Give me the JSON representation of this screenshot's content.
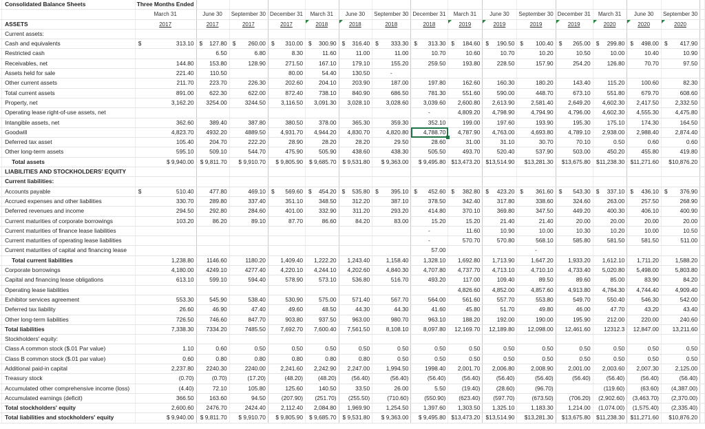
{
  "sheet": {
    "title": "Consolidated Balance Sheets",
    "period_header": "Three Months Ended",
    "selected_cell": {
      "row": "Goodwill",
      "column": "December 31 2018",
      "value": "4,788.70"
    },
    "accent_color": "#217346",
    "comment_marker_color": "#1e8a3a",
    "columns": [
      {
        "date": "March 31",
        "year": "2017",
        "comment": false
      },
      {
        "date": "June 30",
        "year": "2017",
        "comment": false
      },
      {
        "date": "September 30",
        "year": "2017",
        "comment": false
      },
      {
        "date": "December 31",
        "year": "2017",
        "comment": false
      },
      {
        "date": "March 31",
        "year": "2018",
        "comment": true
      },
      {
        "date": "June 30",
        "year": "2018",
        "comment": true
      },
      {
        "date": "September 30",
        "year": "2018",
        "comment": false
      },
      {
        "date": "December 31",
        "year": "2018",
        "comment": false
      },
      {
        "date": "March 31",
        "year": "2019",
        "comment": true
      },
      {
        "date": "June 30",
        "year": "2019",
        "comment": true
      },
      {
        "date": "September 30",
        "year": "2019",
        "comment": false
      },
      {
        "date": "December 31",
        "year": "2019",
        "comment": true
      },
      {
        "date": "March 31",
        "year": "2020",
        "comment": true
      },
      {
        "date": "June 30",
        "year": "2020",
        "comment": true
      },
      {
        "date": "September 30",
        "year": "2020",
        "comment": true
      }
    ],
    "rows": [
      {
        "label": "ASSETS",
        "style": "header-in-years",
        "values": []
      },
      {
        "label": "Current assets:",
        "values": []
      },
      {
        "label": "Cash and equivalents",
        "dollar": [
          1,
          1,
          1,
          1,
          1,
          1,
          1,
          1,
          1,
          1,
          1,
          1,
          1,
          1,
          1
        ],
        "values": [
          "313.10",
          "127.80",
          "260.00",
          "310.00",
          "300.90",
          "316.40",
          "333.30",
          "313.30",
          "184.60",
          "190.50",
          "100.40",
          "265.00",
          "299.80",
          "498.00",
          "417.90"
        ]
      },
      {
        "label": "Restricted cash",
        "values": [
          "",
          "6.50",
          "6.80",
          "8.30",
          "11.60",
          "11.00",
          "11.00",
          "10.70",
          "10.60",
          "10.70",
          "10.20",
          "10.50",
          "10.00",
          "10.40",
          "10.90"
        ]
      },
      {
        "label": "Receivables, net",
        "values": [
          "144.80",
          "153.80",
          "128.90",
          "271.50",
          "167.10",
          "179.10",
          "155.20",
          "259.50",
          "193.80",
          "228.50",
          "157.90",
          "254.20",
          "126.80",
          "70.70",
          "97.50"
        ]
      },
      {
        "label": "Assets held for sale",
        "values": [
          "221.40",
          "110.50",
          "",
          "80.00",
          "54.40",
          "130.50",
          "-",
          "",
          "",
          "",
          "",
          "",
          "",
          "",
          ""
        ]
      },
      {
        "label": "Other current assets",
        "values": [
          "211.70",
          "223.70",
          "226.30",
          "202.60",
          "204.10",
          "203.90",
          "187.00",
          "197.80",
          "162.60",
          "160.30",
          "180.20",
          "143.40",
          "115.20",
          "100.60",
          "82.30"
        ]
      },
      {
        "label": "Total current assets",
        "values": [
          "891.00",
          "622.30",
          "622.00",
          "872.40",
          "738.10",
          "840.90",
          "686.50",
          "781.30",
          "551.60",
          "590.00",
          "448.70",
          "673.10",
          "551.80",
          "679.70",
          "608.60"
        ]
      },
      {
        "label": "Property, net",
        "values": [
          "3,162.20",
          "3254.00",
          "3244.50",
          "3,116.50",
          "3,091.30",
          "3,028.10",
          "3,028.60",
          "3,039.60",
          "2,600.80",
          "2,613.90",
          "2,581.40",
          "2,649.20",
          "4,602.30",
          "2,417.50",
          "2,332.50"
        ]
      },
      {
        "label": "Operating lease right-of-use assets, net",
        "values": [
          "",
          "",
          "",
          "",
          "",
          "",
          "",
          "-",
          "4,809.20",
          "4,798.90",
          "4,794.90",
          "4,796.00",
          "4,602.30",
          "4,555.30",
          "4,475.80"
        ]
      },
      {
        "label": "Intangible assets, net",
        "values": [
          "362.60",
          "389.40",
          "387.80",
          "380.50",
          "378.00",
          "365.30",
          "359.30",
          "352.10",
          "199.00",
          "197.60",
          "193.90",
          "195.30",
          "175.10",
          "174.30",
          "164.50"
        ]
      },
      {
        "label": "Goodwill",
        "values": [
          "4,823.70",
          "4932.20",
          "4889.50",
          "4,931.70",
          "4,944.20",
          "4,830.70",
          "4,820.80",
          "4,788.70",
          "4,787.90",
          "4,763.00",
          "4,693.80",
          "4,789.10",
          "2,938.00",
          "2,988.40",
          "2,874.40"
        ]
      },
      {
        "label": "Deferred tax asset",
        "values": [
          "105.40",
          "204.70",
          "222.20",
          "28.90",
          "28.20",
          "28.20",
          "29.50",
          "28.60",
          "31.00",
          "31.10",
          "30.70",
          "70.10",
          "0.50",
          "0.60",
          "0.60"
        ]
      },
      {
        "label": "Other long-term assets",
        "values": [
          "595.10",
          "509.10",
          "544.70",
          "475.90",
          "505.90",
          "438.60",
          "438.30",
          "505.50",
          "493.70",
          "520.40",
          "537.90",
          "503.00",
          "450.20",
          "455.80",
          "419.80"
        ]
      },
      {
        "label": "Total assets",
        "style": "total",
        "values": [
          "$ 9,940.00",
          "$ 9,811.70",
          "$ 9,910.70",
          "$ 9,805.90",
          "$ 9,685.70",
          "$ 9,531.80",
          "$ 9,363.00",
          "$ 9,495.80",
          "$13,473.20",
          "$13,514.90",
          "$13,281.30",
          "$13,675.80",
          "$11,238.30",
          "$11,271.60",
          "$10,876.20"
        ]
      },
      {
        "label": "LIABILITIES AND STOCKHOLDERS' EQUITY",
        "style": "bold",
        "values": []
      },
      {
        "label": "Current liabilities:",
        "style": "bold",
        "values": []
      },
      {
        "label": "Accounts payable",
        "dollar": [
          1,
          0,
          0,
          1,
          1,
          1,
          1,
          1,
          1,
          1,
          1,
          1,
          1,
          1,
          1
        ],
        "values": [
          "510.40",
          "477.80",
          "469.10",
          "569.60",
          "454.20",
          "535.80",
          "395.10",
          "452.60",
          "382.80",
          "423.20",
          "361.60",
          "543.30",
          "337.10",
          "436.10",
          "376.90"
        ]
      },
      {
        "label": "Accrued expenses and other liabilities",
        "values": [
          "330.70",
          "289.80",
          "337.40",
          "351.10",
          "348.50",
          "312.20",
          "387.10",
          "378.50",
          "342.40",
          "317.80",
          "338.60",
          "324.60",
          "263.00",
          "257.50",
          "268.90"
        ]
      },
      {
        "label": "Deferred revenues and income",
        "values": [
          "294.50",
          "292.80",
          "284.60",
          "401.00",
          "332.90",
          "311.20",
          "293.20",
          "414.80",
          "370.10",
          "369.80",
          "347.50",
          "449.20",
          "400.30",
          "406.10",
          "400.90"
        ]
      },
      {
        "label": "Current maturities of corporate borrowings",
        "values": [
          "103.20",
          "86.20",
          "89.10",
          "87.70",
          "86.60",
          "84.20",
          "83.00",
          "15.20",
          "15.20",
          "21.40",
          "21.40",
          "20.00",
          "20.00",
          "20.00",
          "20.00"
        ]
      },
      {
        "label": "Current maturities of finance lease liabilities",
        "values": [
          "",
          "",
          "",
          "",
          "",
          "",
          "",
          "-",
          "11.60",
          "10.90",
          "10.00",
          "10.30",
          "10.20",
          "10.00",
          "10.50"
        ]
      },
      {
        "label": "Current maturities of operating lease liabilities",
        "values": [
          "",
          "",
          "",
          "",
          "",
          "",
          "",
          "-",
          "570.70",
          "570.80",
          "568.10",
          "585.80",
          "581.50",
          "581.50",
          "511.00"
        ]
      },
      {
        "label": "Current maturities of capital and financing lease",
        "values": [
          "",
          "",
          "",
          "",
          "",
          "",
          "",
          "57.00",
          "",
          "",
          "-",
          "",
          "",
          "",
          ""
        ]
      },
      {
        "label": "Total current liabilities",
        "style": "total",
        "values": [
          "1,238.80",
          "1146.60",
          "1180.20",
          "1,409.40",
          "1,222.20",
          "1,243.40",
          "1,158.40",
          "1,328.10",
          "1,692.80",
          "1,713.90",
          "1,647.20",
          "1,933.20",
          "1,612.10",
          "1,711.20",
          "1,588.20"
        ]
      },
      {
        "label": "Corporate borrowings",
        "values": [
          "4,180.00",
          "4249.10",
          "4277.40",
          "4,220.10",
          "4,244.10",
          "4,202.60",
          "4,840.30",
          "4,707.80",
          "4,737.70",
          "4,713.10",
          "4,710.10",
          "4,733.40",
          "5,020.80",
          "5,498.00",
          "5,803.80"
        ]
      },
      {
        "label": "Capital and financing lease obligations",
        "values": [
          "613.10",
          "599.10",
          "594.40",
          "578.90",
          "573.10",
          "536.80",
          "516.70",
          "493.20",
          "117.00",
          "109.40",
          "89.50",
          "89.60",
          "85.00",
          "83.90",
          "84.20"
        ]
      },
      {
        "label": "Operating lease liabilities",
        "values": [
          "",
          "",
          "",
          "",
          "",
          "",
          "",
          "",
          "4,826.60",
          "4,852.00",
          "4,857.60",
          "4,913.80",
          "4,784.30",
          "4,744.40",
          "4,909.40"
        ]
      },
      {
        "label": "Exhibitor services agreement",
        "values": [
          "553.30",
          "545.90",
          "538.40",
          "530.90",
          "575.00",
          "571.40",
          "567.70",
          "564.00",
          "561.60",
          "557.70",
          "553.80",
          "549.70",
          "550.40",
          "546.30",
          "542.00"
        ]
      },
      {
        "label": "Deferred tax liability",
        "values": [
          "26.60",
          "46.90",
          "47.40",
          "49.60",
          "48.50",
          "44.30",
          "44.30",
          "41.60",
          "45.80",
          "51.70",
          "49.80",
          "46.00",
          "47.70",
          "43.20",
          "43.40"
        ]
      },
      {
        "label": "Other long-term liabilities",
        "values": [
          "726.50",
          "746.60",
          "847.70",
          "903.80",
          "937.50",
          "963.00",
          "980.70",
          "963.10",
          "188.20",
          "192.00",
          "190.00",
          "195.90",
          "212.00",
          "220.00",
          "240.60"
        ]
      },
      {
        "label": "Total liabilities",
        "style": "bold",
        "values": [
          "7,338.30",
          "7334.20",
          "7485.50",
          "7,692.70",
          "7,600.40",
          "7,561.50",
          "8,108.10",
          "8,097.80",
          "12,169.70",
          "12,189.80",
          "12,098.00",
          "12,461.60",
          "12312.3",
          "12,847.00",
          "13,211.60"
        ]
      },
      {
        "label": "Stockholders' equity:",
        "values": []
      },
      {
        "label": "Class A common stock ($.01 Par value)",
        "values": [
          "1.10",
          "0.60",
          "0.50",
          "0.50",
          "0.50",
          "0.50",
          "0.50",
          "0.50",
          "0.50",
          "0.50",
          "0.50",
          "0.50",
          "0.50",
          "0.50",
          "0.50"
        ]
      },
      {
        "label": "Class B common stock ($.01 par value)",
        "values": [
          "0.60",
          "0.80",
          "0.80",
          "0.80",
          "0.80",
          "0.80",
          "0.50",
          "0.50",
          "0.50",
          "0.50",
          "0.50",
          "0.50",
          "0.50",
          "0.50",
          "0.50"
        ]
      },
      {
        "label": "Additional paid-in capital",
        "values": [
          "2,237.80",
          "2240.30",
          "2240.00",
          "2,241.60",
          "2,242.90",
          "2,247.00",
          "1,994.50",
          "1998.40",
          "2,001.70",
          "2,006.80",
          "2,008.90",
          "2,001.00",
          "2,003.60",
          "2,007.30",
          "2,125.00"
        ]
      },
      {
        "label": "Treasury stock",
        "values": [
          "(0.70)",
          "(0.70)",
          "(17.20)",
          "(48.20)",
          "(48.20)",
          "(56.40)",
          "(56.40)",
          "(56.40)",
          "(56.40)",
          "(56.40)",
          "(56.40)",
          "(56.40)",
          "(56.40)",
          "(56.40)",
          "(56.40)"
        ]
      },
      {
        "label": "Accumulated other comprehensive income (loss)",
        "values": [
          "(4.40)",
          "72.10",
          "105.80",
          "125.60",
          "140.50",
          "33.50",
          "26.00",
          "5.50",
          "(19.40)",
          "(28.60)",
          "(96.70)",
          "",
          "(119.60)",
          "(63.60)",
          "(4,387.00)"
        ]
      },
      {
        "label": "Accumulated earnings (deficit)",
        "values": [
          "366.50",
          "163.60",
          "94.50",
          "(207.90)",
          "(251.70)",
          "(255.50)",
          "(710.60)",
          "(550.90)",
          "(623.40)",
          "(597.70)",
          "(673.50)",
          "(706.20)",
          "(2,902.60)",
          "(3,463.70)",
          "(2,370.00)"
        ]
      },
      {
        "label": "Total stockholders' equity",
        "style": "bold",
        "values": [
          "2,600.60",
          "2476.70",
          "2424.40",
          "2,112.40",
          "2,084.80",
          "1,969.90",
          "1,254.50",
          "1,397.60",
          "1,303.50",
          "1,325.10",
          "1,183.30",
          "1,214.00",
          "(1,074.00)",
          "(1,575.40)",
          "(2,335.40)"
        ]
      },
      {
        "label": "Total liabilities and stockholders' equity",
        "style": "bold",
        "values": [
          "$ 9,940.00",
          "$ 9,811.70",
          "$ 9,910.70",
          "$ 9,805.90",
          "$ 9,685.70",
          "$ 9,531.80",
          "$ 9,363.00",
          "$ 9,495.80",
          "$13,473.20",
          "$13,514.90",
          "$13,281.30",
          "$13,675.80",
          "$11,238.30",
          "$11,271.60",
          "$10,876.20"
        ]
      }
    ]
  }
}
